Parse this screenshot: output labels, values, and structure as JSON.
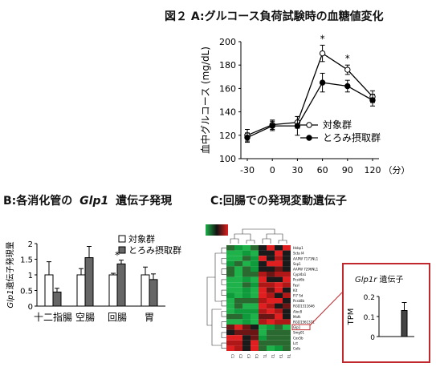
{
  "panel_a": {
    "title": "図２ A:グルコース負荷試験時の血糖値変化",
    "chart_data": {
      "type": "line",
      "xlabel": "",
      "x_unit": "（分）",
      "ylabel": "血中グルコース (mg/dL)",
      "x": [
        -30,
        0,
        30,
        60,
        90,
        120
      ],
      "ylim": [
        100,
        200
      ],
      "yticks": [
        100,
        120,
        140,
        160,
        180,
        200
      ],
      "legend_position": "right",
      "series": [
        {
          "name": "対象群",
          "marker": "open",
          "values": [
            120,
            129,
            131,
            190,
            176,
            153
          ],
          "err": [
            5,
            4,
            5,
            7,
            4,
            5
          ]
        },
        {
          "name": "とろみ摂取群",
          "marker": "filled",
          "values": [
            118,
            128,
            128,
            165,
            162,
            150
          ],
          "err": [
            4,
            4,
            8,
            8,
            5,
            5
          ]
        }
      ],
      "annotations": [
        {
          "x": 60,
          "text": "*"
        },
        {
          "x": 90,
          "text": "*"
        }
      ]
    }
  },
  "panel_b": {
    "title_prefix": "B:各消化管の",
    "title_gene": "Glp1",
    "title_suffix": "遺伝子発現",
    "chart_data": {
      "type": "bar",
      "categories": [
        "十二指腸",
        "空腸",
        "回腸",
        "胃"
      ],
      "ylabel_gene": "Glp1",
      "ylabel": "遺伝子発現量",
      "ylim": [
        0,
        2
      ],
      "yticks": [
        "0",
        "0.5",
        "1",
        "1.5",
        "2"
      ],
      "series": [
        {
          "name": "対象群",
          "color": "#ffffff",
          "values": [
            1.0,
            1.0,
            1.0,
            1.0
          ],
          "err": [
            0.42,
            0.2,
            0.05,
            0.25
          ]
        },
        {
          "name": "とろみ摂取群",
          "color": "#666666",
          "values": [
            0.45,
            1.55,
            1.35,
            0.85
          ],
          "err": [
            0.12,
            0.36,
            0.12,
            0.18
          ]
        }
      ],
      "annotations": [
        {
          "category": "回腸",
          "text": "*"
        }
      ],
      "legend_position": "top-right"
    }
  },
  "panel_c": {
    "title": "C:回腸での発現変動遺伝子",
    "heatmap_genes": [
      "Hsbp1",
      "Scta l4",
      "AAPW 7171NL1",
      "Ssp1",
      "AAPW 7296NL1",
      "Cypl4a1",
      "Pcsk6b",
      "Fasl",
      "Kit",
      "Fl7 Sd",
      "Pcsk8b",
      "RGD1311646",
      "Aloc8",
      "Mafk",
      "RGD1561371",
      "Glp1",
      "Smg01",
      "Cox5b",
      "Lct",
      "Colb"
    ],
    "sample_labels": [
      "C1",
      "C2",
      "C3",
      "C4",
      "T1",
      "T2",
      "T3",
      "T4"
    ],
    "inset": {
      "title_gene": "Glp1r",
      "title_suffix": "遺伝子",
      "chart_data": {
        "type": "bar",
        "categories": [
          ""
        ],
        "ylabel": "TPM",
        "ylim": [
          0,
          0.2
        ],
        "yticks": [
          "0",
          "0.1",
          "0.2"
        ],
        "series": [
          {
            "name": "",
            "color": "#444444",
            "values": [
              0.13
            ],
            "err": [
              0.04
            ]
          }
        ]
      }
    }
  }
}
